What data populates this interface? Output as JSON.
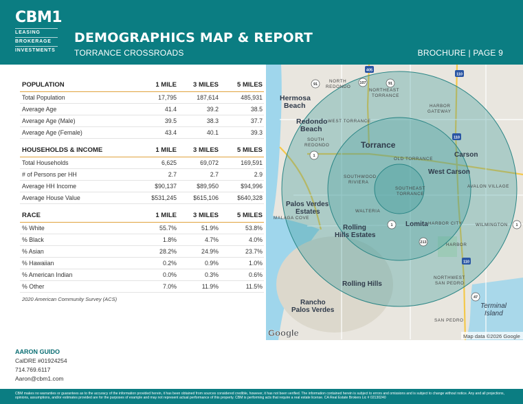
{
  "brand": {
    "logo": "CBM1",
    "lines": [
      "LEASING",
      "BROKERAGE",
      "INVESTMENTS"
    ],
    "color": "#0b7d82",
    "accent": "#e0a23b"
  },
  "header": {
    "title": "DEMOGRAPHICS MAP & REPORT",
    "subtitle": "TORRANCE CROSSROADS",
    "page": "BROCHURE | PAGE 9"
  },
  "population": {
    "headers": [
      "POPULATION",
      "1 MILE",
      "3 MILES",
      "5 MILES"
    ],
    "rows": [
      [
        "Total Population",
        "17,795",
        "187,614",
        "485,931"
      ],
      [
        "Average Age",
        "41.4",
        "39.2",
        "38.5"
      ],
      [
        "Average Age (Male)",
        "39.5",
        "38.3",
        "37.7"
      ],
      [
        "Average Age (Female)",
        "43.4",
        "40.1",
        "39.3"
      ]
    ]
  },
  "households": {
    "headers": [
      "HOUSEHOLDS & INCOME",
      "1 MILE",
      "3 MILES",
      "5 MILES"
    ],
    "rows": [
      [
        "Total Households",
        "6,625",
        "69,072",
        "169,591"
      ],
      [
        "# of Persons per HH",
        "2.7",
        "2.7",
        "2.9"
      ],
      [
        "Average HH Income",
        "$90,137",
        "$89,950",
        "$94,996"
      ],
      [
        "Average House Value",
        "$531,245",
        "$615,106",
        "$640,328"
      ]
    ]
  },
  "race": {
    "headers": [
      "RACE",
      "1 MILE",
      "3 MILES",
      "5 MILES"
    ],
    "rows": [
      [
        "% White",
        "55.7%",
        "51.9%",
        "53.8%"
      ],
      [
        "% Black",
        "1.8%",
        "4.7%",
        "4.0%"
      ],
      [
        "% Asian",
        "28.2%",
        "24.9%",
        "23.7%"
      ],
      [
        "% Hawaiian",
        "0.2%",
        "0.9%",
        "1.0%"
      ],
      [
        "% American Indian",
        "0.0%",
        "0.3%",
        "0.6%"
      ],
      [
        "% Other",
        "7.0%",
        "11.9%",
        "11.5%"
      ]
    ]
  },
  "source": "2020 American Community Survey (ACS)",
  "map": {
    "labels": {
      "hermosa": "Hermosa",
      "beach": "Beach",
      "redondo": "Redondo",
      "north_redondo_1": "NORTH",
      "north_redondo_2": "REDONDO",
      "northeast_torrance_1": "NORTHEAST",
      "northeast_torrance_2": "TORRANCE",
      "harbor_gateway_1": "HARBOR",
      "harbor_gateway_2": "GATEWAY",
      "west_torrance": "WEST TORRANCE",
      "south_redondo_1": "SOUTH",
      "south_redondo_2": "REDONDO",
      "torrance": "Torrance",
      "carson": "Carson",
      "old_torrance": "OLD TORRANCE",
      "west_carson": "West Carson",
      "southwood_1": "SOUTHWOOD",
      "southwood_2": "RIVIERA",
      "southeast_1": "SOUTHEAST",
      "southeast_2": "TORRANCE",
      "avalon_village": "AVALON VILLAGE",
      "palos_verdes_1": "Palos Verdes",
      "palos_verdes_2": "Estates",
      "walteria": "WALTERIA",
      "malaga_cove": "MALAGA COVE",
      "rolling_hills_estates_1": "Rolling",
      "rolling_hills_estates_2": "Hills Estates",
      "lomita": "Lomita",
      "harbor_city": "HARBOR CITY",
      "wilmington": "WILMINGTON",
      "harbor": "HARBOR",
      "northwest_sp_1": "NORTHWEST",
      "northwest_sp_2": "SAN PEDRO",
      "rolling_hills": "Rolling Hills",
      "rancho_1": "Rancho",
      "rancho_2": "Palos Verdes",
      "terminal_1": "Terminal",
      "terminal_2": "Island",
      "san_pedro": "SAN PEDRO",
      "google": "Google",
      "attribution": "Map data ©2026 Google"
    },
    "shields": [
      "405",
      "110",
      "91",
      "107",
      "91",
      "110",
      "1",
      "1",
      "213",
      "110",
      "47",
      "1"
    ],
    "colors": {
      "ring_fill": "#3f9a9a",
      "water": "#9fd6ec",
      "land": "#e8e4dc"
    }
  },
  "contact": {
    "name": "AARON GUIDO",
    "license": "CalDRE #01924254",
    "phone": "714.769.6117",
    "email": "Aaron@cbm1.com"
  },
  "disclaimer": "CBM makes no warranties or guarantees as to the accuracy of the information provided herein, it has been obtained from sources considered credible, however, it has not been verified. The information contained herein is subject to errors and omissions and is subject to change without notice. Any and all projections, opinions, assumptions, and/or estimates provided are for the purposes of example and may not represent actual performance of this property. CBM is performing acts that require a real estate license. CA Real Estate Brokers Lic # 02130240"
}
